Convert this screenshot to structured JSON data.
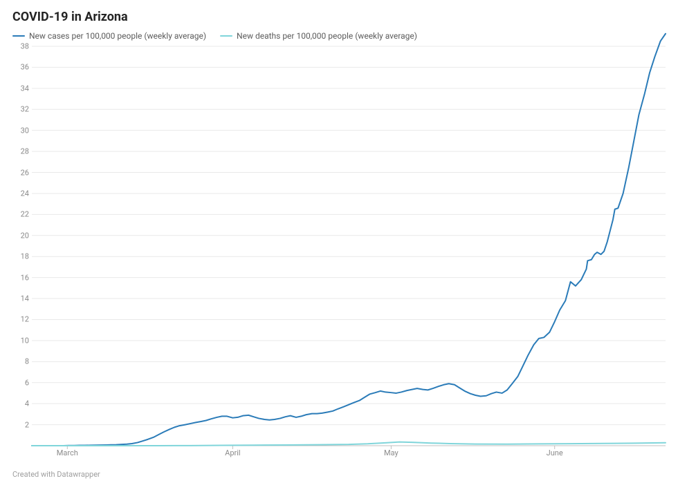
{
  "title": "COVID-19 in Arizona",
  "title_fontsize": 18,
  "legend": {
    "items": [
      {
        "label": "New cases per 100,000 people (weekly average)",
        "color": "#2a7bb8"
      },
      {
        "label": "New deaths per 100,000 people (weekly average)",
        "color": "#7fd5da"
      }
    ]
  },
  "chart": {
    "type": "line",
    "background_color": "#ffffff",
    "grid_color": "#e9e9e9",
    "axis_color": "#bfbfbf",
    "tick_color": "#8a8a8a",
    "line_width": 2,
    "y": {
      "min": 0,
      "max": 38,
      "tick_step": 2
    },
    "x": {
      "start": "2020-02-24",
      "end": "2020-06-23",
      "ticks": [
        {
          "pos": 0.056,
          "label": "March"
        },
        {
          "pos": 0.317,
          "label": "April"
        },
        {
          "pos": 0.567,
          "label": "May"
        },
        {
          "pos": 0.825,
          "label": "June"
        }
      ]
    },
    "series": [
      {
        "color": "#2a7bb8",
        "points": [
          [
            0.0,
            0.0
          ],
          [
            0.008,
            0.0
          ],
          [
            0.017,
            0.0
          ],
          [
            0.025,
            0.0
          ],
          [
            0.033,
            0.0
          ],
          [
            0.042,
            0.0
          ],
          [
            0.05,
            0.0
          ],
          [
            0.058,
            0.02
          ],
          [
            0.067,
            0.02
          ],
          [
            0.075,
            0.03
          ],
          [
            0.083,
            0.03
          ],
          [
            0.092,
            0.04
          ],
          [
            0.1,
            0.05
          ],
          [
            0.108,
            0.06
          ],
          [
            0.117,
            0.07
          ],
          [
            0.125,
            0.08
          ],
          [
            0.133,
            0.09
          ],
          [
            0.142,
            0.12
          ],
          [
            0.15,
            0.15
          ],
          [
            0.158,
            0.2
          ],
          [
            0.167,
            0.3
          ],
          [
            0.175,
            0.45
          ],
          [
            0.183,
            0.6
          ],
          [
            0.192,
            0.8
          ],
          [
            0.2,
            1.05
          ],
          [
            0.208,
            1.3
          ],
          [
            0.217,
            1.55
          ],
          [
            0.225,
            1.75
          ],
          [
            0.233,
            1.9
          ],
          [
            0.242,
            2.0
          ],
          [
            0.25,
            2.1
          ],
          [
            0.258,
            2.2
          ],
          [
            0.267,
            2.3
          ],
          [
            0.275,
            2.4
          ],
          [
            0.283,
            2.55
          ],
          [
            0.292,
            2.7
          ],
          [
            0.3,
            2.8
          ],
          [
            0.308,
            2.8
          ],
          [
            0.317,
            2.65
          ],
          [
            0.325,
            2.7
          ],
          [
            0.333,
            2.85
          ],
          [
            0.342,
            2.9
          ],
          [
            0.35,
            2.75
          ],
          [
            0.358,
            2.6
          ],
          [
            0.367,
            2.5
          ],
          [
            0.375,
            2.45
          ],
          [
            0.383,
            2.5
          ],
          [
            0.392,
            2.6
          ],
          [
            0.4,
            2.75
          ],
          [
            0.408,
            2.85
          ],
          [
            0.417,
            2.7
          ],
          [
            0.425,
            2.8
          ],
          [
            0.433,
            2.95
          ],
          [
            0.442,
            3.05
          ],
          [
            0.45,
            3.05
          ],
          [
            0.458,
            3.1
          ],
          [
            0.467,
            3.2
          ],
          [
            0.475,
            3.3
          ],
          [
            0.483,
            3.5
          ],
          [
            0.492,
            3.7
          ],
          [
            0.5,
            3.9
          ],
          [
            0.508,
            4.1
          ],
          [
            0.517,
            4.3
          ],
          [
            0.525,
            4.6
          ],
          [
            0.533,
            4.9
          ],
          [
            0.542,
            5.05
          ],
          [
            0.55,
            5.2
          ],
          [
            0.558,
            5.1
          ],
          [
            0.567,
            5.05
          ],
          [
            0.575,
            5.0
          ],
          [
            0.583,
            5.1
          ],
          [
            0.592,
            5.25
          ],
          [
            0.6,
            5.35
          ],
          [
            0.608,
            5.45
          ],
          [
            0.617,
            5.35
          ],
          [
            0.625,
            5.3
          ],
          [
            0.633,
            5.45
          ],
          [
            0.642,
            5.65
          ],
          [
            0.65,
            5.8
          ],
          [
            0.658,
            5.9
          ],
          [
            0.667,
            5.8
          ],
          [
            0.675,
            5.5
          ],
          [
            0.683,
            5.2
          ],
          [
            0.692,
            4.95
          ],
          [
            0.7,
            4.8
          ],
          [
            0.708,
            4.7
          ],
          [
            0.717,
            4.75
          ],
          [
            0.725,
            4.95
          ],
          [
            0.733,
            5.1
          ],
          [
            0.742,
            5.0
          ],
          [
            0.75,
            5.3
          ],
          [
            0.758,
            5.9
          ],
          [
            0.767,
            6.6
          ],
          [
            0.775,
            7.6
          ],
          [
            0.783,
            8.6
          ],
          [
            0.792,
            9.6
          ],
          [
            0.8,
            10.2
          ],
          [
            0.808,
            10.3
          ],
          [
            0.817,
            10.8
          ],
          [
            0.825,
            11.8
          ],
          [
            0.833,
            12.9
          ],
          [
            0.842,
            13.8
          ],
          [
            0.85,
            15.6
          ],
          [
            0.858,
            15.2
          ],
          [
            0.867,
            15.8
          ],
          [
            0.875,
            16.8
          ],
          [
            0.877,
            17.6
          ],
          [
            0.883,
            17.7
          ],
          [
            0.888,
            18.2
          ],
          [
            0.892,
            18.4
          ],
          [
            0.898,
            18.2
          ],
          [
            0.903,
            18.5
          ],
          [
            0.908,
            19.4
          ],
          [
            0.917,
            21.5
          ],
          [
            0.92,
            22.5
          ],
          [
            0.925,
            22.6
          ],
          [
            0.933,
            24.0
          ],
          [
            0.942,
            26.5
          ],
          [
            0.95,
            29.0
          ],
          [
            0.958,
            31.5
          ],
          [
            0.967,
            33.5
          ],
          [
            0.975,
            35.5
          ],
          [
            0.983,
            37.0
          ],
          [
            0.992,
            38.5
          ],
          [
            1.0,
            39.2
          ]
        ]
      },
      {
        "color": "#7fd5da",
        "points": [
          [
            0.0,
            0.0
          ],
          [
            0.05,
            0.0
          ],
          [
            0.1,
            0.0
          ],
          [
            0.15,
            0.0
          ],
          [
            0.2,
            0.0
          ],
          [
            0.25,
            0.01
          ],
          [
            0.3,
            0.03
          ],
          [
            0.35,
            0.05
          ],
          [
            0.4,
            0.07
          ],
          [
            0.45,
            0.09
          ],
          [
            0.5,
            0.12
          ],
          [
            0.53,
            0.18
          ],
          [
            0.56,
            0.28
          ],
          [
            0.58,
            0.35
          ],
          [
            0.6,
            0.32
          ],
          [
            0.63,
            0.25
          ],
          [
            0.66,
            0.2
          ],
          [
            0.7,
            0.16
          ],
          [
            0.75,
            0.15
          ],
          [
            0.8,
            0.17
          ],
          [
            0.85,
            0.19
          ],
          [
            0.9,
            0.21
          ],
          [
            0.95,
            0.24
          ],
          [
            1.0,
            0.28
          ]
        ]
      }
    ]
  },
  "attribution": "Created with Datawrapper",
  "colors": {
    "title": "#242424",
    "attribution": "#9e9e9e"
  }
}
